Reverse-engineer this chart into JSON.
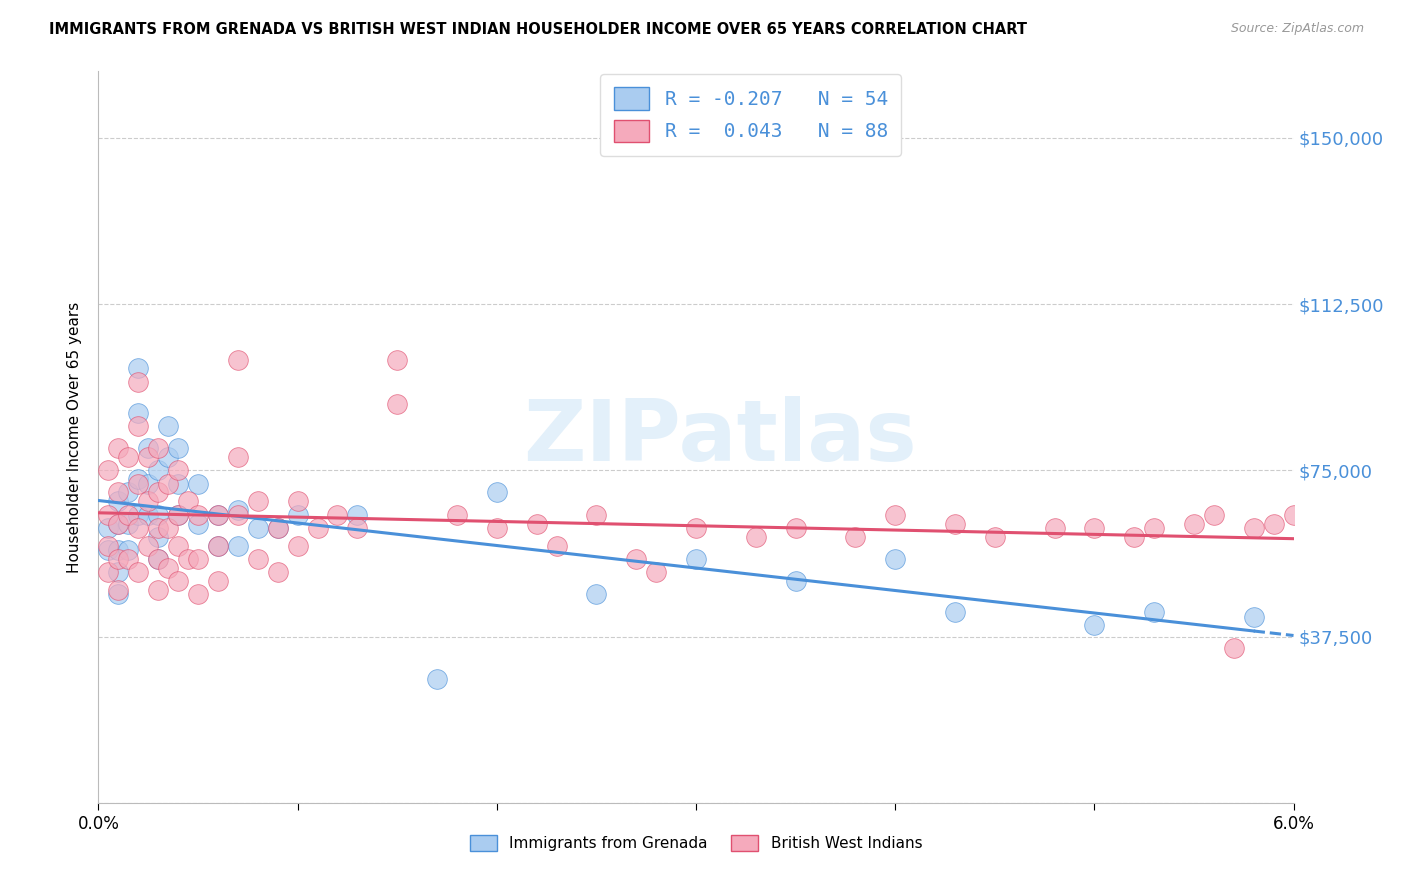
{
  "title": "IMMIGRANTS FROM GRENADA VS BRITISH WEST INDIAN HOUSEHOLDER INCOME OVER 65 YEARS CORRELATION CHART",
  "source": "Source: ZipAtlas.com",
  "ylabel": "Householder Income Over 65 years",
  "xlim": [
    0.0,
    0.06
  ],
  "ylim": [
    0,
    165000
  ],
  "yticks": [
    0,
    37500,
    75000,
    112500,
    150000
  ],
  "ytick_labels": [
    "",
    "$37,500",
    "$75,000",
    "$112,500",
    "$150,000"
  ],
  "xtick_labels": [
    "0.0%",
    "",
    "",
    "",
    "",
    "",
    "6.0%"
  ],
  "xticks": [
    0.0,
    0.01,
    0.02,
    0.03,
    0.04,
    0.05,
    0.06
  ],
  "series1_color": "#aaccf0",
  "series2_color": "#f5aabc",
  "trendline1_color": "#4a90d9",
  "trendline2_color": "#e05070",
  "R1": -0.207,
  "N1": 54,
  "R2": 0.043,
  "N2": 88,
  "legend1_label": "Immigrants from Grenada",
  "legend2_label": "British West Indians",
  "watermark_text": "ZIPatlas",
  "axis_color": "#4a90d9",
  "series1_x": [
    0.0005,
    0.0005,
    0.001,
    0.001,
    0.001,
    0.001,
    0.001,
    0.0015,
    0.0015,
    0.0015,
    0.002,
    0.002,
    0.002,
    0.002,
    0.0025,
    0.0025,
    0.0025,
    0.003,
    0.003,
    0.003,
    0.003,
    0.0035,
    0.0035,
    0.004,
    0.004,
    0.004,
    0.005,
    0.005,
    0.006,
    0.006,
    0.007,
    0.007,
    0.008,
    0.009,
    0.01,
    0.013,
    0.017,
    0.02,
    0.025,
    0.03,
    0.035,
    0.04,
    0.043,
    0.05,
    0.053,
    0.058
  ],
  "series1_y": [
    62000,
    57000,
    68000,
    63000,
    57000,
    52000,
    47000,
    70000,
    63000,
    57000,
    98000,
    88000,
    73000,
    65000,
    80000,
    72000,
    65000,
    75000,
    65000,
    60000,
    55000,
    85000,
    78000,
    80000,
    72000,
    65000,
    72000,
    63000,
    65000,
    58000,
    66000,
    58000,
    62000,
    62000,
    65000,
    65000,
    28000,
    70000,
    47000,
    55000,
    50000,
    55000,
    43000,
    40000,
    43000,
    42000
  ],
  "series2_x": [
    0.0005,
    0.0005,
    0.0005,
    0.0005,
    0.001,
    0.001,
    0.001,
    0.001,
    0.001,
    0.0015,
    0.0015,
    0.0015,
    0.002,
    0.002,
    0.002,
    0.002,
    0.002,
    0.0025,
    0.0025,
    0.0025,
    0.003,
    0.003,
    0.003,
    0.003,
    0.003,
    0.0035,
    0.0035,
    0.0035,
    0.004,
    0.004,
    0.004,
    0.004,
    0.0045,
    0.0045,
    0.005,
    0.005,
    0.005,
    0.006,
    0.006,
    0.006,
    0.007,
    0.007,
    0.007,
    0.008,
    0.008,
    0.009,
    0.009,
    0.01,
    0.01,
    0.011,
    0.012,
    0.013,
    0.015,
    0.015,
    0.018,
    0.02,
    0.022,
    0.023,
    0.025,
    0.027,
    0.028,
    0.03,
    0.033,
    0.035,
    0.038,
    0.04,
    0.043,
    0.045,
    0.048,
    0.05,
    0.052,
    0.053,
    0.055,
    0.056,
    0.057,
    0.058,
    0.059,
    0.06
  ],
  "series2_y": [
    75000,
    65000,
    58000,
    52000,
    80000,
    70000,
    63000,
    55000,
    48000,
    78000,
    65000,
    55000,
    95000,
    85000,
    72000,
    62000,
    52000,
    78000,
    68000,
    58000,
    80000,
    70000,
    62000,
    55000,
    48000,
    72000,
    62000,
    53000,
    75000,
    65000,
    58000,
    50000,
    68000,
    55000,
    65000,
    55000,
    47000,
    65000,
    58000,
    50000,
    100000,
    78000,
    65000,
    68000,
    55000,
    62000,
    52000,
    68000,
    58000,
    62000,
    65000,
    62000,
    100000,
    90000,
    65000,
    62000,
    63000,
    58000,
    65000,
    55000,
    52000,
    62000,
    60000,
    62000,
    60000,
    65000,
    63000,
    60000,
    62000,
    62000,
    60000,
    62000,
    63000,
    65000,
    35000,
    62000,
    63000,
    65000
  ]
}
